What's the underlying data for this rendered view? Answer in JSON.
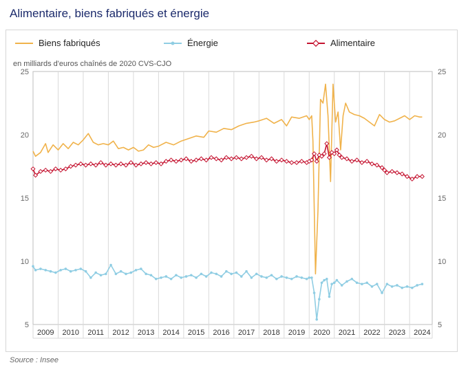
{
  "title": "Alimentaire, biens fabriqués et énergie",
  "source": "Source : Insee",
  "legend": {
    "manufactured": "Biens fabriqués",
    "energy": "Énergie",
    "food": "Alimentaire"
  },
  "colors": {
    "manufactured": "#f0b24a",
    "energy": "#8fcde3",
    "food": "#c4122f",
    "grid": "#d9d9d9",
    "axis_text": "#666666"
  },
  "chart_data": {
    "type": "line",
    "unit_label": "en milliards d'euros chaînés de 2020 CVS-CJO",
    "ylim": [
      5,
      25
    ],
    "yticks": [
      5,
      10,
      15,
      20,
      25
    ],
    "x_range": [
      2009,
      2024.9
    ],
    "year_labels": [
      "2009",
      "2010",
      "2011",
      "2012",
      "2013",
      "2014",
      "2015",
      "2016",
      "2017",
      "2018",
      "2019",
      "2020",
      "2021",
      "2022",
      "2023",
      "2024"
    ],
    "grid": "vertical lines at year boundaries",
    "legend_position": "top",
    "series": [
      {
        "name": "Biens fabriqués",
        "key": "manufactured",
        "marker": "none",
        "points": [
          [
            2009.0,
            18.7
          ],
          [
            2009.1,
            18.3
          ],
          [
            2009.3,
            18.6
          ],
          [
            2009.5,
            19.3
          ],
          [
            2009.6,
            18.6
          ],
          [
            2009.8,
            19.2
          ],
          [
            2010.0,
            18.8
          ],
          [
            2010.2,
            19.3
          ],
          [
            2010.4,
            18.9
          ],
          [
            2010.6,
            19.4
          ],
          [
            2010.8,
            19.2
          ],
          [
            2011.0,
            19.6
          ],
          [
            2011.2,
            20.1
          ],
          [
            2011.4,
            19.4
          ],
          [
            2011.6,
            19.2
          ],
          [
            2011.8,
            19.3
          ],
          [
            2012.0,
            19.2
          ],
          [
            2012.2,
            19.5
          ],
          [
            2012.4,
            18.9
          ],
          [
            2012.6,
            19.0
          ],
          [
            2012.8,
            18.8
          ],
          [
            2013.0,
            19.0
          ],
          [
            2013.2,
            18.7
          ],
          [
            2013.4,
            18.8
          ],
          [
            2013.6,
            19.2
          ],
          [
            2013.8,
            19.0
          ],
          [
            2014.0,
            19.1
          ],
          [
            2014.3,
            19.4
          ],
          [
            2014.6,
            19.2
          ],
          [
            2014.9,
            19.5
          ],
          [
            2015.2,
            19.7
          ],
          [
            2015.5,
            19.9
          ],
          [
            2015.8,
            19.8
          ],
          [
            2016.0,
            20.3
          ],
          [
            2016.3,
            20.2
          ],
          [
            2016.6,
            20.5
          ],
          [
            2016.9,
            20.4
          ],
          [
            2017.2,
            20.7
          ],
          [
            2017.5,
            20.9
          ],
          [
            2017.8,
            21.0
          ],
          [
            2018.0,
            21.1
          ],
          [
            2018.3,
            21.3
          ],
          [
            2018.6,
            20.9
          ],
          [
            2018.9,
            21.2
          ],
          [
            2019.1,
            20.7
          ],
          [
            2019.3,
            21.4
          ],
          [
            2019.6,
            21.3
          ],
          [
            2019.9,
            21.5
          ],
          [
            2020.0,
            21.2
          ],
          [
            2020.1,
            21.5
          ],
          [
            2020.15,
            19.5
          ],
          [
            2020.25,
            9.0
          ],
          [
            2020.35,
            14.0
          ],
          [
            2020.45,
            22.8
          ],
          [
            2020.55,
            22.5
          ],
          [
            2020.65,
            24.0
          ],
          [
            2020.75,
            21.5
          ],
          [
            2020.85,
            16.3
          ],
          [
            2020.95,
            24.0
          ],
          [
            2021.05,
            21.0
          ],
          [
            2021.15,
            21.8
          ],
          [
            2021.25,
            18.8
          ],
          [
            2021.35,
            21.5
          ],
          [
            2021.45,
            22.5
          ],
          [
            2021.6,
            21.8
          ],
          [
            2021.8,
            21.6
          ],
          [
            2022.0,
            21.5
          ],
          [
            2022.2,
            21.3
          ],
          [
            2022.4,
            21.0
          ],
          [
            2022.6,
            20.7
          ],
          [
            2022.8,
            21.6
          ],
          [
            2023.0,
            21.2
          ],
          [
            2023.2,
            21.0
          ],
          [
            2023.4,
            21.1
          ],
          [
            2023.6,
            21.3
          ],
          [
            2023.8,
            21.5
          ],
          [
            2024.0,
            21.2
          ],
          [
            2024.2,
            21.5
          ],
          [
            2024.4,
            21.4
          ],
          [
            2024.5,
            21.4
          ]
        ]
      },
      {
        "name": "Énergie",
        "key": "energy",
        "marker": "dot",
        "points": [
          [
            2009.0,
            9.6
          ],
          [
            2009.1,
            9.3
          ],
          [
            2009.3,
            9.4
          ],
          [
            2009.5,
            9.3
          ],
          [
            2009.7,
            9.2
          ],
          [
            2009.9,
            9.1
          ],
          [
            2010.1,
            9.3
          ],
          [
            2010.3,
            9.4
          ],
          [
            2010.5,
            9.2
          ],
          [
            2010.7,
            9.3
          ],
          [
            2010.9,
            9.4
          ],
          [
            2011.1,
            9.2
          ],
          [
            2011.3,
            8.7
          ],
          [
            2011.5,
            9.1
          ],
          [
            2011.7,
            8.9
          ],
          [
            2011.9,
            9.0
          ],
          [
            2012.1,
            9.7
          ],
          [
            2012.3,
            9.0
          ],
          [
            2012.5,
            9.2
          ],
          [
            2012.7,
            9.0
          ],
          [
            2012.9,
            9.1
          ],
          [
            2013.1,
            9.3
          ],
          [
            2013.3,
            9.4
          ],
          [
            2013.5,
            9.0
          ],
          [
            2013.7,
            8.9
          ],
          [
            2013.9,
            8.6
          ],
          [
            2014.1,
            8.7
          ],
          [
            2014.3,
            8.8
          ],
          [
            2014.5,
            8.6
          ],
          [
            2014.7,
            8.9
          ],
          [
            2014.9,
            8.7
          ],
          [
            2015.1,
            8.8
          ],
          [
            2015.3,
            8.9
          ],
          [
            2015.5,
            8.7
          ],
          [
            2015.7,
            9.0
          ],
          [
            2015.9,
            8.8
          ],
          [
            2016.1,
            9.1
          ],
          [
            2016.3,
            9.0
          ],
          [
            2016.5,
            8.8
          ],
          [
            2016.7,
            9.2
          ],
          [
            2016.9,
            9.0
          ],
          [
            2017.1,
            9.1
          ],
          [
            2017.3,
            8.8
          ],
          [
            2017.5,
            9.2
          ],
          [
            2017.7,
            8.7
          ],
          [
            2017.9,
            9.0
          ],
          [
            2018.1,
            8.8
          ],
          [
            2018.3,
            8.7
          ],
          [
            2018.5,
            8.9
          ],
          [
            2018.7,
            8.6
          ],
          [
            2018.9,
            8.8
          ],
          [
            2019.1,
            8.7
          ],
          [
            2019.3,
            8.6
          ],
          [
            2019.5,
            8.8
          ],
          [
            2019.7,
            8.7
          ],
          [
            2019.9,
            8.6
          ],
          [
            2020.0,
            8.7
          ],
          [
            2020.1,
            8.7
          ],
          [
            2020.2,
            7.5
          ],
          [
            2020.3,
            5.4
          ],
          [
            2020.4,
            7.0
          ],
          [
            2020.5,
            8.3
          ],
          [
            2020.6,
            8.5
          ],
          [
            2020.7,
            8.6
          ],
          [
            2020.8,
            7.2
          ],
          [
            2020.9,
            8.2
          ],
          [
            2021.0,
            8.3
          ],
          [
            2021.1,
            8.5
          ],
          [
            2021.3,
            8.1
          ],
          [
            2021.5,
            8.4
          ],
          [
            2021.7,
            8.6
          ],
          [
            2021.9,
            8.3
          ],
          [
            2022.1,
            8.2
          ],
          [
            2022.3,
            8.3
          ],
          [
            2022.5,
            8.0
          ],
          [
            2022.7,
            8.2
          ],
          [
            2022.9,
            7.5
          ],
          [
            2023.1,
            8.2
          ],
          [
            2023.3,
            8.0
          ],
          [
            2023.5,
            8.1
          ],
          [
            2023.7,
            7.9
          ],
          [
            2023.9,
            8.0
          ],
          [
            2024.1,
            7.9
          ],
          [
            2024.3,
            8.1
          ],
          [
            2024.5,
            8.2
          ]
        ]
      },
      {
        "name": "Alimentaire",
        "key": "food",
        "marker": "diamond",
        "points": [
          [
            2009.0,
            17.3
          ],
          [
            2009.1,
            16.8
          ],
          [
            2009.3,
            17.1
          ],
          [
            2009.5,
            17.2
          ],
          [
            2009.7,
            17.1
          ],
          [
            2009.9,
            17.3
          ],
          [
            2010.1,
            17.2
          ],
          [
            2010.3,
            17.3
          ],
          [
            2010.5,
            17.5
          ],
          [
            2010.7,
            17.6
          ],
          [
            2010.9,
            17.7
          ],
          [
            2011.1,
            17.6
          ],
          [
            2011.3,
            17.7
          ],
          [
            2011.5,
            17.6
          ],
          [
            2011.7,
            17.8
          ],
          [
            2011.9,
            17.6
          ],
          [
            2012.1,
            17.7
          ],
          [
            2012.3,
            17.6
          ],
          [
            2012.5,
            17.7
          ],
          [
            2012.7,
            17.6
          ],
          [
            2012.9,
            17.8
          ],
          [
            2013.1,
            17.6
          ],
          [
            2013.3,
            17.7
          ],
          [
            2013.5,
            17.8
          ],
          [
            2013.7,
            17.7
          ],
          [
            2013.9,
            17.8
          ],
          [
            2014.1,
            17.7
          ],
          [
            2014.3,
            17.9
          ],
          [
            2014.5,
            18.0
          ],
          [
            2014.7,
            17.9
          ],
          [
            2014.9,
            18.0
          ],
          [
            2015.1,
            18.1
          ],
          [
            2015.3,
            17.9
          ],
          [
            2015.5,
            18.0
          ],
          [
            2015.7,
            18.1
          ],
          [
            2015.9,
            18.0
          ],
          [
            2016.1,
            18.2
          ],
          [
            2016.3,
            18.1
          ],
          [
            2016.5,
            18.0
          ],
          [
            2016.7,
            18.2
          ],
          [
            2016.9,
            18.1
          ],
          [
            2017.1,
            18.2
          ],
          [
            2017.3,
            18.1
          ],
          [
            2017.5,
            18.2
          ],
          [
            2017.7,
            18.3
          ],
          [
            2017.9,
            18.1
          ],
          [
            2018.1,
            18.2
          ],
          [
            2018.3,
            18.0
          ],
          [
            2018.5,
            18.1
          ],
          [
            2018.7,
            17.9
          ],
          [
            2018.9,
            18.0
          ],
          [
            2019.1,
            17.9
          ],
          [
            2019.3,
            17.8
          ],
          [
            2019.5,
            17.8
          ],
          [
            2019.7,
            17.9
          ],
          [
            2019.9,
            17.8
          ],
          [
            2020.0,
            17.9
          ],
          [
            2020.1,
            18.0
          ],
          [
            2020.2,
            18.5
          ],
          [
            2020.3,
            17.9
          ],
          [
            2020.4,
            18.4
          ],
          [
            2020.5,
            18.3
          ],
          [
            2020.6,
            18.5
          ],
          [
            2020.7,
            19.3
          ],
          [
            2020.8,
            18.2
          ],
          [
            2020.9,
            18.6
          ],
          [
            2021.0,
            18.5
          ],
          [
            2021.1,
            18.8
          ],
          [
            2021.2,
            18.4
          ],
          [
            2021.3,
            18.2
          ],
          [
            2021.5,
            18.1
          ],
          [
            2021.7,
            17.9
          ],
          [
            2021.9,
            18.0
          ],
          [
            2022.1,
            17.8
          ],
          [
            2022.3,
            17.9
          ],
          [
            2022.5,
            17.7
          ],
          [
            2022.7,
            17.6
          ],
          [
            2022.9,
            17.4
          ],
          [
            2023.0,
            17.2
          ],
          [
            2023.1,
            17.0
          ],
          [
            2023.3,
            17.1
          ],
          [
            2023.5,
            17.0
          ],
          [
            2023.7,
            16.9
          ],
          [
            2023.9,
            16.7
          ],
          [
            2024.1,
            16.5
          ],
          [
            2024.3,
            16.7
          ],
          [
            2024.5,
            16.7
          ]
        ]
      }
    ]
  }
}
